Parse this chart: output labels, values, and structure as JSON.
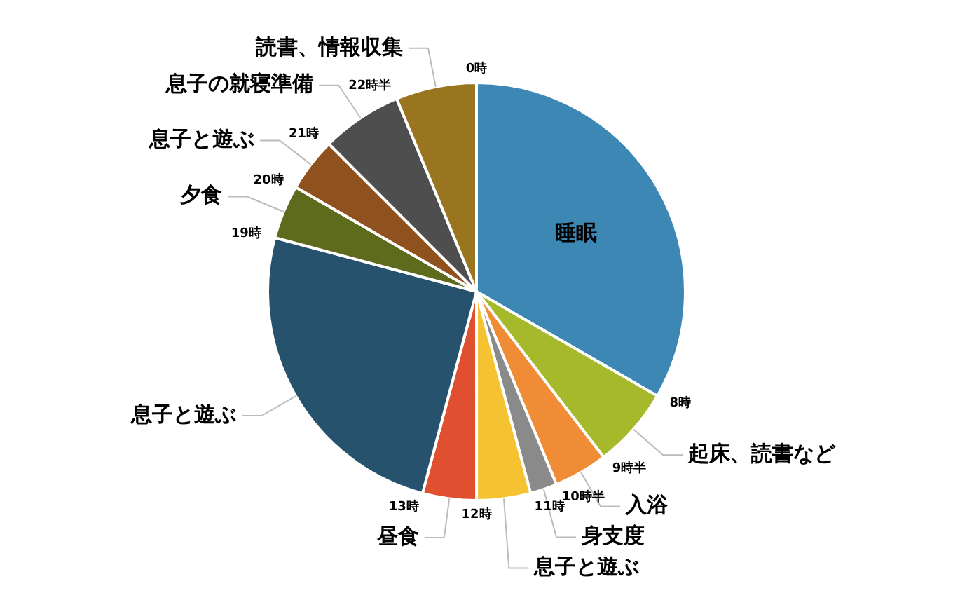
{
  "chart_data": {
    "type": "pie",
    "categories": [
      "睡眠",
      "起床、読書など",
      "入浴",
      "身支度",
      "息子と遊ぶ",
      "昼食",
      "息子と遊ぶ",
      "夕食",
      "息子と遊ぶ",
      "息子の就寝準備",
      "読書、情報収集"
    ],
    "values": [
      33.33,
      6.25,
      4.17,
      2.08,
      4.17,
      4.17,
      25,
      4.17,
      4.17,
      6.25,
      6.25
    ],
    "colors": [
      "#3d87b5",
      "#a5b92a",
      "#ef8c35",
      "#8a8a8a",
      "#f5c232",
      "#e05030",
      "#27526e",
      "#5e6b1c",
      "#8f521e",
      "#4e4e4e",
      "#9a7520"
    ],
    "annotations": [
      "0時",
      "8時",
      "9時半",
      "10時半",
      "11時",
      "12時",
      "13時",
      "19時",
      "20時",
      "21時",
      "22時半"
    ],
    "legend": false
  }
}
